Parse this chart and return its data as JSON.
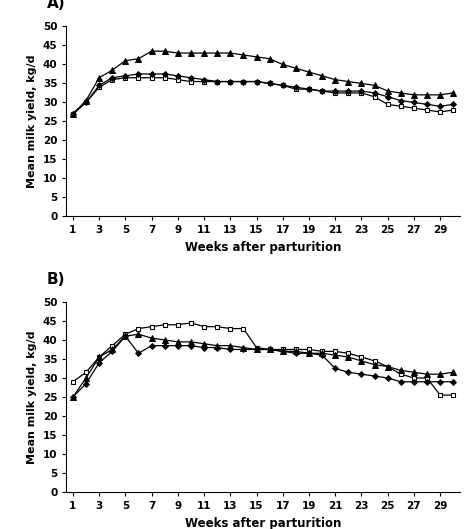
{
  "weeks_A": [
    1,
    2,
    3,
    4,
    5,
    6,
    7,
    8,
    9,
    10,
    11,
    12,
    13,
    14,
    15,
    16,
    17,
    18,
    19,
    20,
    21,
    22,
    23,
    24,
    25,
    26,
    27,
    28,
    29,
    30
  ],
  "weeks_B": [
    1,
    2,
    3,
    4,
    5,
    6,
    7,
    8,
    9,
    10,
    11,
    12,
    13,
    14,
    15,
    16,
    17,
    18,
    19,
    20,
    21,
    22,
    23,
    24,
    25,
    26,
    27,
    28,
    29,
    30
  ],
  "panel_A": {
    "triangle_filled": [
      27.0,
      30.5,
      36.5,
      38.5,
      41.0,
      41.5,
      43.5,
      43.5,
      43.0,
      43.0,
      43.0,
      43.0,
      43.0,
      42.5,
      42.0,
      41.5,
      40.0,
      39.0,
      38.0,
      37.0,
      36.0,
      35.5,
      35.0,
      34.5,
      33.0,
      32.5,
      32.0,
      32.0,
      32.0,
      32.5
    ],
    "diamond_filled": [
      27.0,
      30.0,
      34.5,
      36.5,
      37.0,
      37.5,
      37.5,
      37.5,
      37.0,
      36.5,
      36.0,
      35.5,
      35.5,
      35.5,
      35.5,
      35.0,
      34.5,
      34.0,
      33.5,
      33.0,
      33.0,
      33.0,
      33.0,
      32.5,
      31.5,
      30.5,
      30.0,
      29.5,
      29.0,
      29.5
    ],
    "square_open": [
      27.0,
      30.0,
      34.0,
      36.0,
      36.5,
      36.5,
      36.5,
      36.5,
      36.0,
      35.5,
      35.5,
      35.5,
      35.5,
      35.5,
      35.5,
      35.0,
      34.5,
      33.5,
      33.5,
      33.0,
      32.5,
      32.5,
      32.5,
      31.5,
      29.5,
      29.0,
      28.5,
      28.0,
      27.5,
      28.0
    ]
  },
  "panel_B": {
    "square_open": [
      29.0,
      31.5,
      35.5,
      38.5,
      41.5,
      43.0,
      43.5,
      44.0,
      44.0,
      44.5,
      43.5,
      43.5,
      43.0,
      43.0,
      38.0,
      37.5,
      37.5,
      37.5,
      37.5,
      37.0,
      37.0,
      36.5,
      35.5,
      34.5,
      33.0,
      31.0,
      30.0,
      30.0,
      25.5,
      25.5
    ],
    "triangle_filled": [
      25.0,
      30.0,
      35.5,
      37.5,
      41.0,
      41.5,
      40.5,
      40.0,
      39.5,
      39.5,
      39.0,
      38.5,
      38.5,
      38.0,
      37.5,
      37.5,
      37.0,
      37.0,
      36.5,
      36.5,
      36.0,
      35.5,
      34.5,
      33.5,
      33.0,
      32.0,
      31.5,
      31.0,
      31.0,
      31.5
    ],
    "diamond_filled": [
      25.0,
      28.5,
      34.0,
      37.0,
      41.0,
      36.5,
      38.5,
      38.5,
      38.5,
      38.5,
      38.0,
      38.0,
      37.5,
      37.5,
      37.5,
      37.5,
      37.0,
      36.5,
      36.5,
      36.0,
      32.5,
      31.5,
      31.0,
      30.5,
      30.0,
      29.0,
      29.0,
      29.0,
      29.0,
      29.0
    ]
  },
  "ylabel": "Mean milk yield, kg/d",
  "xlabel": "Weeks after parturition",
  "ylim": [
    0,
    50
  ],
  "yticks": [
    0,
    5,
    10,
    15,
    20,
    25,
    30,
    35,
    40,
    45,
    50
  ],
  "xticks": [
    1,
    3,
    5,
    7,
    9,
    11,
    13,
    15,
    17,
    19,
    21,
    23,
    25,
    27,
    29
  ],
  "label_A": "A)",
  "label_B": "B)",
  "line_color": "#000000",
  "bg_color": "#ffffff",
  "tick_fontsize": 7.5,
  "ylabel_fontsize": 8.0,
  "xlabel_fontsize": 8.5,
  "panel_label_fontsize": 11
}
